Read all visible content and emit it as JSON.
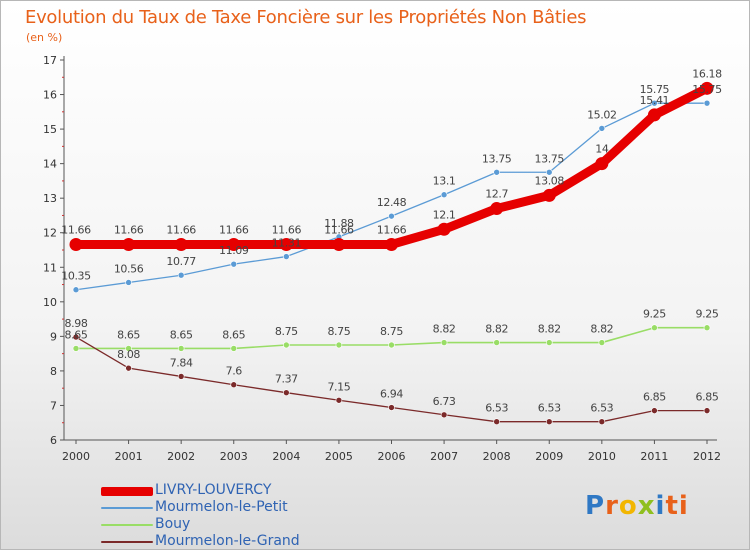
{
  "header": {
    "title": "Evolution du Taux de Taxe Foncière sur les Propriétés Non Bâties",
    "unit": "(en %)"
  },
  "logo": {
    "text": "Proxiti",
    "letters": [
      "P",
      "r",
      "o",
      "x",
      "i",
      "ti"
    ]
  },
  "chart_data": {
    "type": "line",
    "x": [
      "2000",
      "2001",
      "2002",
      "2003",
      "2004",
      "2005",
      "2006",
      "2007",
      "2008",
      "2009",
      "2010",
      "2011",
      "2012"
    ],
    "ylim": [
      6,
      17
    ],
    "yticks": [
      "6",
      "7",
      "8",
      "9",
      "10",
      "11",
      "12",
      "13",
      "14",
      "15",
      "16",
      "17"
    ],
    "grid": false,
    "legend_position": "bottom-left",
    "series": [
      {
        "name": "LIVRY-LOUVERCY",
        "color": "#e60000",
        "values": [
          11.66,
          11.66,
          11.66,
          11.66,
          11.66,
          11.66,
          11.66,
          12.1,
          12.7,
          13.08,
          14,
          15.41,
          16.18
        ],
        "labels": [
          "11.66",
          "11.66",
          "11.66",
          "11.66",
          "11.66",
          "11.66",
          "11.66",
          "12.1",
          "12.7",
          "13.08",
          "14",
          "15.41",
          "16.18"
        ]
      },
      {
        "name": "Mourmelon-le-Petit",
        "color": "#5b9bd5",
        "values": [
          10.35,
          10.56,
          10.77,
          11.09,
          11.31,
          11.88,
          12.48,
          13.1,
          13.75,
          13.75,
          15.02,
          15.75,
          15.75
        ],
        "labels": [
          "10.35",
          "10.56",
          "10.77",
          "11.09",
          "11.31",
          "11.88",
          "12.48",
          "13.1",
          "13.75",
          "13.75",
          "15.02",
          "15.75",
          "15.75"
        ]
      },
      {
        "name": "Bouy",
        "color": "#99dd66",
        "values": [
          8.65,
          8.65,
          8.65,
          8.65,
          8.75,
          8.75,
          8.75,
          8.82,
          8.82,
          8.82,
          8.82,
          9.25,
          9.25
        ],
        "labels": [
          "8.65",
          "8.65",
          "8.65",
          "8.65",
          "8.75",
          "8.75",
          "8.75",
          "8.82",
          "8.82",
          "8.82",
          "8.82",
          "9.25",
          "9.25"
        ]
      },
      {
        "name": "Mourmelon-le-Grand",
        "color": "#7b2a2a",
        "values": [
          8.98,
          8.08,
          7.84,
          7.6,
          7.37,
          7.15,
          6.94,
          6.73,
          6.53,
          6.53,
          6.53,
          6.85,
          6.85
        ],
        "labels": [
          "8.98",
          "8.08",
          "7.84",
          "7.6",
          "7.37",
          "7.15",
          "6.94",
          "6.73",
          "6.53",
          "6.53",
          "6.53",
          "6.85",
          "6.85"
        ]
      }
    ]
  }
}
